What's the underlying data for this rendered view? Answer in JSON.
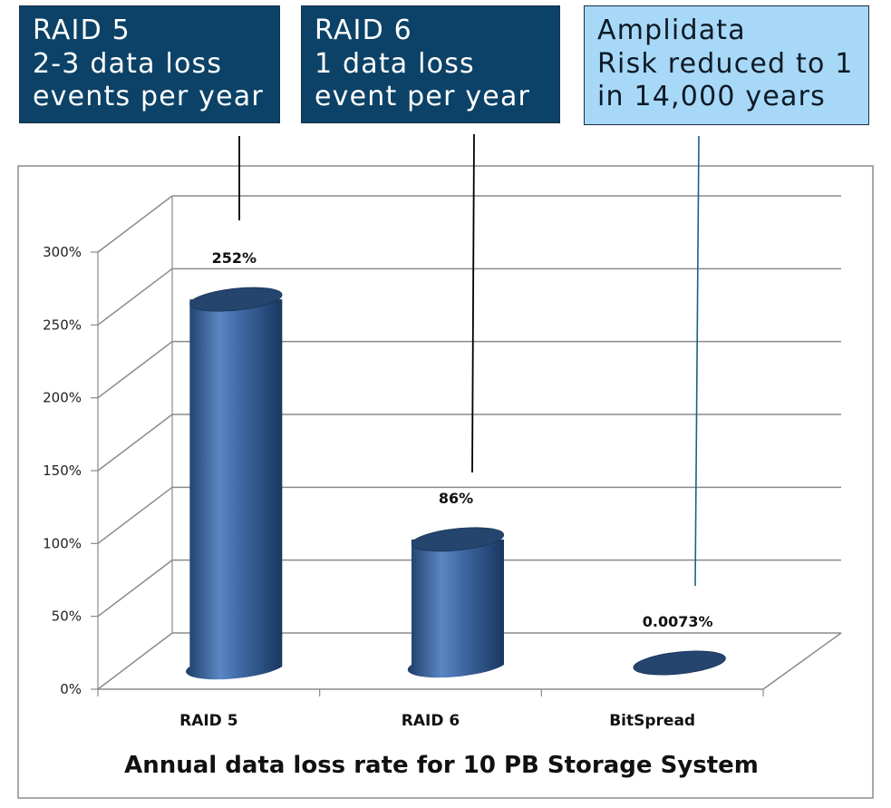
{
  "callouts": {
    "raid5": [
      "RAID 5",
      "2-3 data loss",
      "events per year"
    ],
    "raid6": [
      "RAID 6",
      "1 data loss",
      "event per year"
    ],
    "amplidata": [
      "Amplidata",
      "Risk reduced to 1",
      "in 14,000 years"
    ]
  },
  "chart_data": {
    "type": "bar",
    "style": "3d-cylinder",
    "title": "Annual data loss rate for 10 PB Storage System",
    "xlabel": "",
    "ylabel": "",
    "categories": [
      "RAID 5",
      "RAID 6",
      "BitSpread"
    ],
    "values": [
      252,
      86,
      0.0073
    ],
    "data_labels": [
      "252%",
      "86%",
      "0.0073%"
    ],
    "ylim": [
      0,
      300
    ],
    "yticks": [
      0,
      50,
      100,
      150,
      200,
      250,
      300
    ],
    "ytick_labels": [
      "0%",
      "50%",
      "100%",
      "150%",
      "200%",
      "250%",
      "300%"
    ],
    "grid": true,
    "legend": "none",
    "colors": {
      "bar": "#2c5282",
      "bar_highlight": "#5b86c2",
      "bar_shadow": "#173459",
      "bar_top": "#25456e",
      "callout_dark": "#0c4267",
      "callout_light": "#a7d8f7",
      "amplidata_line": "#1f5f8a"
    }
  }
}
